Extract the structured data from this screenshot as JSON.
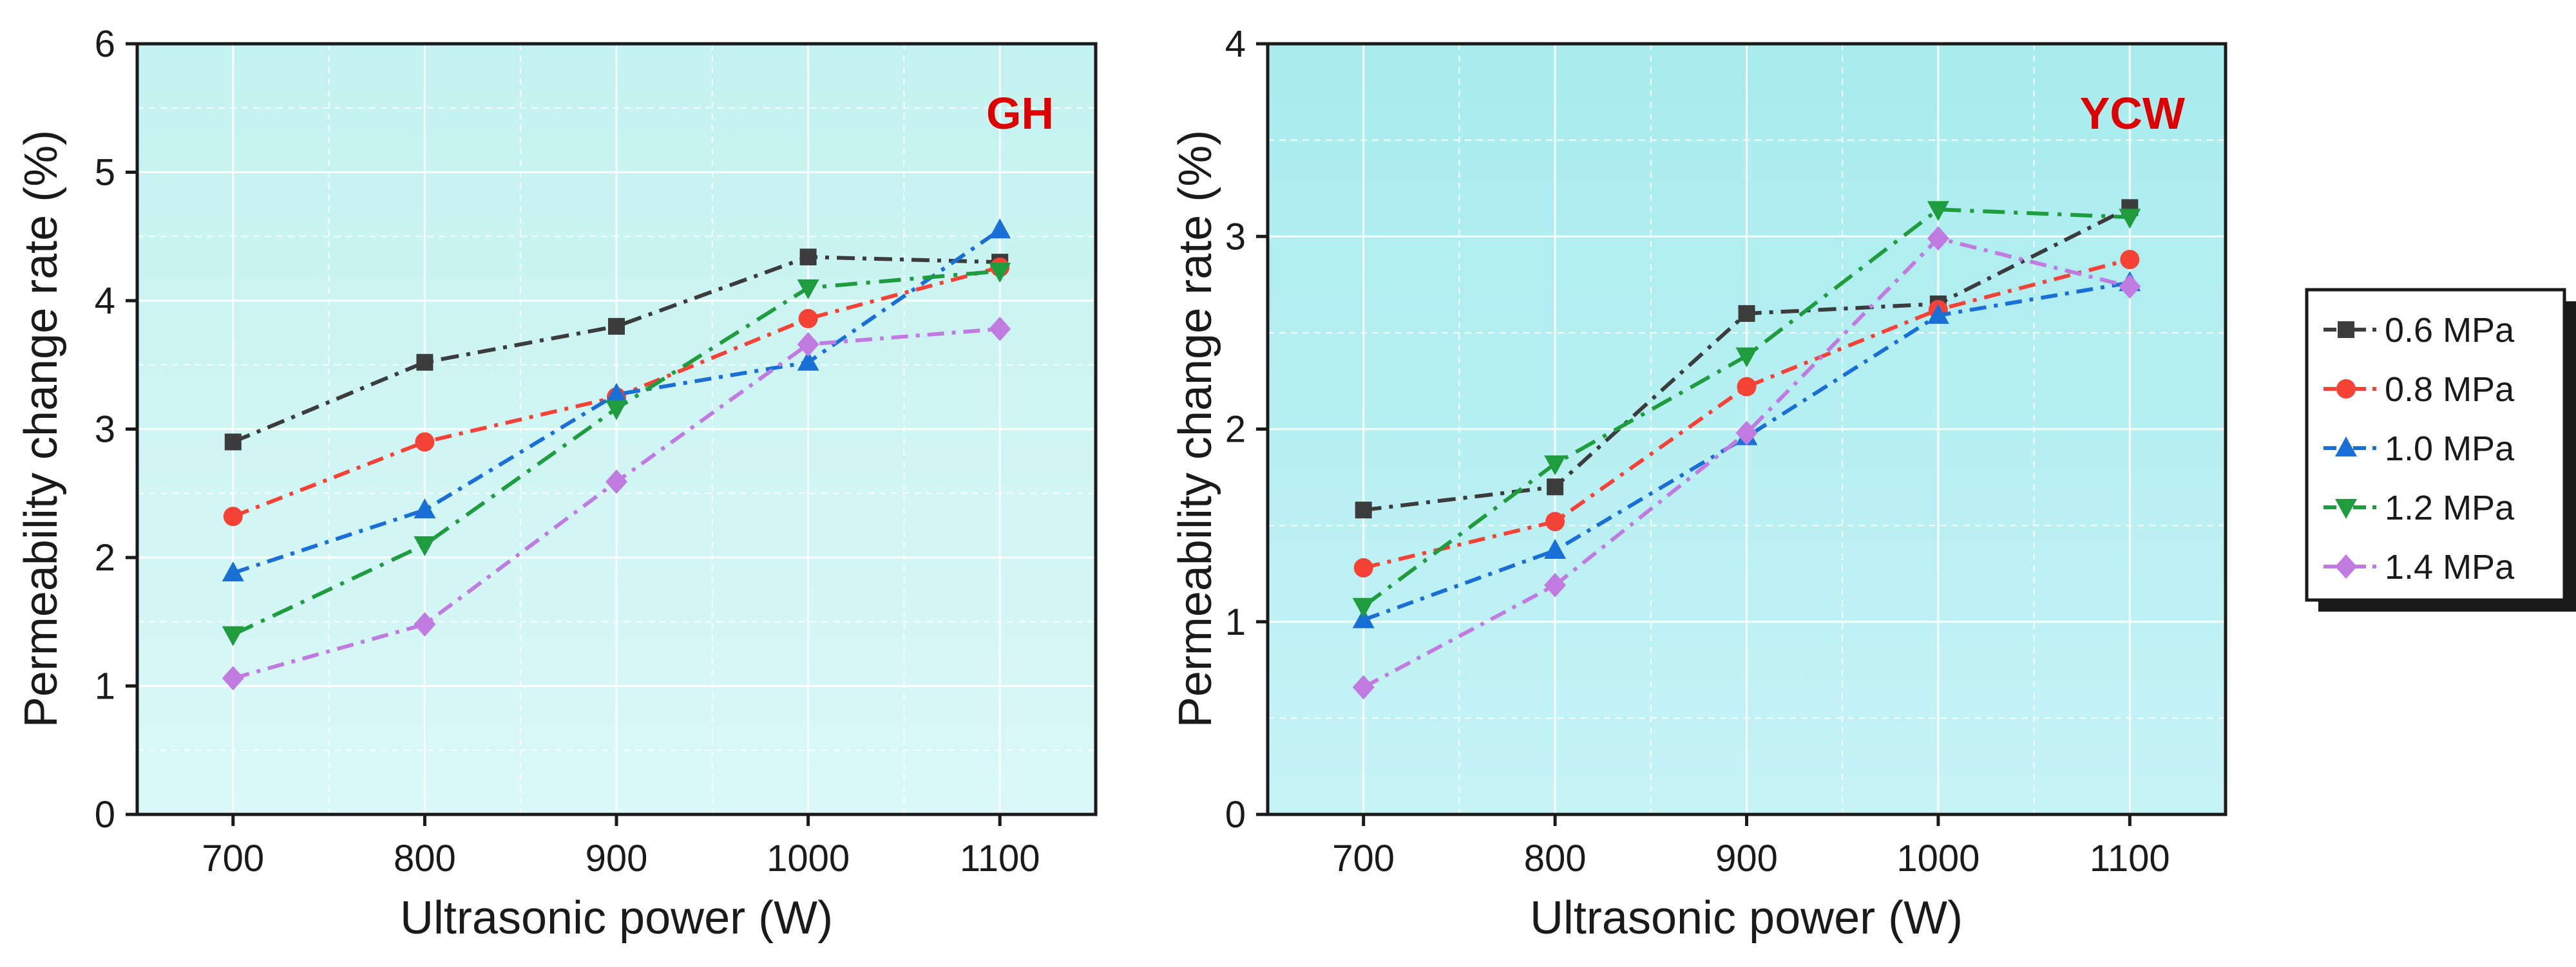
{
  "chart_data": [
    {
      "type": "line",
      "panel_label": "GH",
      "xlabel": "Ultrasonic power (W)",
      "ylabel": "Permeability change rate (%)",
      "categories": [
        "700",
        "800",
        "900",
        "1000",
        "1100"
      ],
      "x": [
        700,
        800,
        900,
        1000,
        1100
      ],
      "xlim": [
        650,
        1150
      ],
      "ylim": [
        0,
        6
      ],
      "yticks": [
        "0",
        "1",
        "2",
        "3",
        "4",
        "5",
        "6"
      ],
      "grid": true,
      "series": [
        {
          "name": "0.6 MPa",
          "values": [
            2.9,
            3.52,
            3.8,
            4.34,
            4.3
          ]
        },
        {
          "name": "0.8 MPa",
          "values": [
            2.32,
            2.9,
            3.25,
            3.86,
            4.26
          ]
        },
        {
          "name": "1.0 MPa",
          "values": [
            1.88,
            2.37,
            3.27,
            3.52,
            4.55
          ]
        },
        {
          "name": "1.2 MPa",
          "values": [
            1.4,
            2.1,
            3.16,
            4.1,
            4.23
          ]
        },
        {
          "name": "1.4 MPa",
          "values": [
            1.06,
            1.48,
            2.59,
            3.66,
            3.78
          ]
        }
      ]
    },
    {
      "type": "line",
      "panel_label": "YCW",
      "xlabel": "Ultrasonic power (W)",
      "ylabel": "Permeability change rate (%)",
      "categories": [
        "700",
        "800",
        "900",
        "1000",
        "1100"
      ],
      "x": [
        700,
        800,
        900,
        1000,
        1100
      ],
      "xlim": [
        650,
        1150
      ],
      "ylim": [
        0,
        4
      ],
      "yticks": [
        "0",
        "1",
        "2",
        "3",
        "4"
      ],
      "grid": true,
      "series": [
        {
          "name": "0.6 MPa",
          "values": [
            1.58,
            1.7,
            2.6,
            2.65,
            3.15
          ]
        },
        {
          "name": "0.8 MPa",
          "values": [
            1.28,
            1.52,
            2.22,
            2.62,
            2.88
          ]
        },
        {
          "name": "1.0 MPa",
          "values": [
            1.01,
            1.37,
            1.96,
            2.59,
            2.76
          ]
        },
        {
          "name": "1.2 MPa",
          "values": [
            1.08,
            1.82,
            2.38,
            3.14,
            3.1
          ]
        },
        {
          "name": "1.4 MPa",
          "values": [
            0.66,
            1.19,
            1.98,
            2.99,
            2.74
          ]
        }
      ]
    }
  ],
  "legend": {
    "position": "right",
    "entries": [
      "0.6 MPa",
      "0.8 MPa",
      "1.0 MPa",
      "1.2 MPa",
      "1.4 MPa"
    ]
  },
  "style": {
    "series_colors": [
      "#3c3c3c",
      "#f44336",
      "#1a6fd6",
      "#1f9c3e",
      "#c17be0"
    ],
    "series_markers": [
      "square",
      "circle",
      "triangle-up",
      "triangle-down",
      "diamond"
    ],
    "panel_label_color": "#dd0000",
    "panel_backgrounds": [
      [
        "#c4f2f0",
        "#daf8f8"
      ],
      [
        "#a8ecee",
        "#c6f3f6"
      ]
    ],
    "grid_color": "#ffffff",
    "axis_color": "#1a1a1a"
  }
}
